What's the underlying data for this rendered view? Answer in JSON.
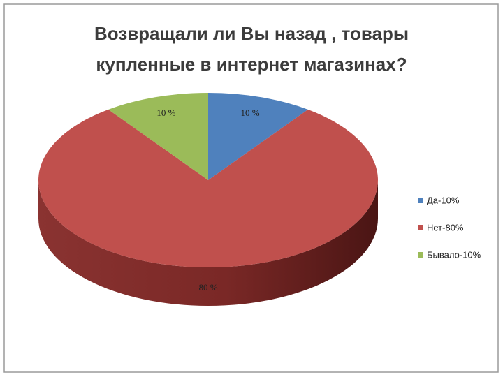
{
  "chart_data": {
    "type": "pie3d",
    "title": "Возвращали ли Вы назад , товары купленные в интернет магазинах?",
    "categories": [
      "Да-10%",
      "Нет-80%",
      "Бывало-10%"
    ],
    "values": [
      10,
      80,
      10
    ],
    "value_labels": [
      "10 %",
      "80 %",
      "10 %"
    ],
    "colors": [
      "#4f81bd",
      "#c0504d",
      "#9bbb59"
    ],
    "legend": "right"
  }
}
